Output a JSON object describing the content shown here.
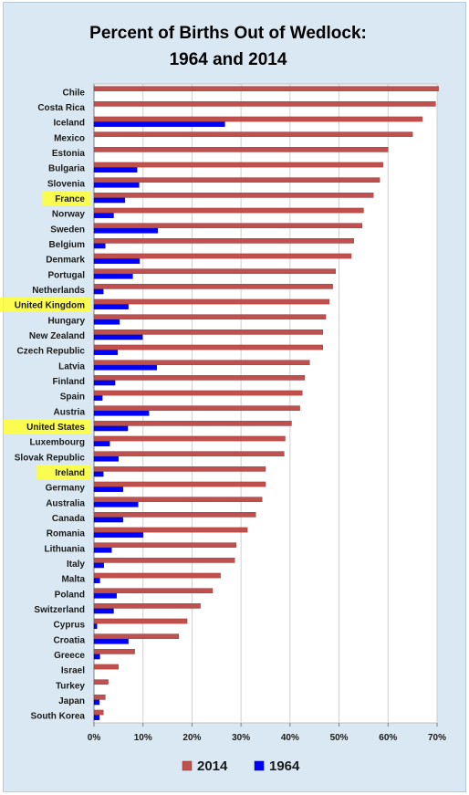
{
  "chart_data": {
    "type": "bar",
    "orientation": "horizontal",
    "title_line1": "Percent of Births Out of Wedlock:",
    "title_line2": "1964 and 2014",
    "categories": [
      "Chile",
      "Costa Rica",
      "Iceland",
      "Mexico",
      "Estonia",
      "Bulgaria",
      "Slovenia",
      "France",
      "Norway",
      "Sweden",
      "Belgium",
      "Denmark",
      "Portugal",
      "Netherlands",
      "United Kingdom",
      "Hungary",
      "New Zealand",
      "Czech Republic",
      "Latvia",
      "Finland",
      "Spain",
      "Austria",
      "United States",
      "Luxembourg",
      "Slovak Republic",
      "Ireland",
      "Germany",
      "Australia",
      "Canada",
      "Romania",
      "Lithuania",
      "Italy",
      "Malta",
      "Poland",
      "Switzerland",
      "Cyprus",
      "Croatia",
      "Greece",
      "Israel",
      "Turkey",
      "Japan",
      "South Korea"
    ],
    "highlighted_categories": [
      "France",
      "United Kingdom",
      "United States",
      "Ireland"
    ],
    "series": [
      {
        "name": "2014",
        "color": "#c0504d",
        "values": [
          70.3,
          69.7,
          67.0,
          65.0,
          60.0,
          59.0,
          58.3,
          57.0,
          55.0,
          54.7,
          53.0,
          52.5,
          49.3,
          48.7,
          48.0,
          47.3,
          46.7,
          46.7,
          44.0,
          43.0,
          42.5,
          42.0,
          40.3,
          39.0,
          38.8,
          35.0,
          35.0,
          34.3,
          33.0,
          31.3,
          29.0,
          28.7,
          25.8,
          24.2,
          21.7,
          19.0,
          17.3,
          8.3,
          5.0,
          2.9,
          2.3,
          1.9
        ]
      },
      {
        "name": "1964",
        "color": "#0000ff",
        "values": [
          null,
          null,
          26.7,
          null,
          null,
          8.8,
          9.2,
          6.3,
          4.0,
          13.0,
          2.3,
          9.3,
          7.9,
          1.9,
          7.0,
          5.2,
          9.9,
          4.8,
          12.8,
          4.3,
          1.7,
          11.2,
          6.9,
          3.2,
          5.0,
          1.9,
          5.9,
          9.0,
          5.9,
          10.0,
          3.6,
          2.0,
          1.2,
          4.6,
          4.0,
          0.6,
          7.0,
          1.2,
          null,
          null,
          1.1,
          1.1
        ]
      }
    ],
    "x_ticks": [
      "0%",
      "10%",
      "20%",
      "30%",
      "40%",
      "50%",
      "60%",
      "70%"
    ],
    "xlim": [
      0,
      70
    ],
    "grid": true,
    "legend": {
      "position": "bottom",
      "entries": [
        "2014",
        "1964"
      ]
    }
  }
}
